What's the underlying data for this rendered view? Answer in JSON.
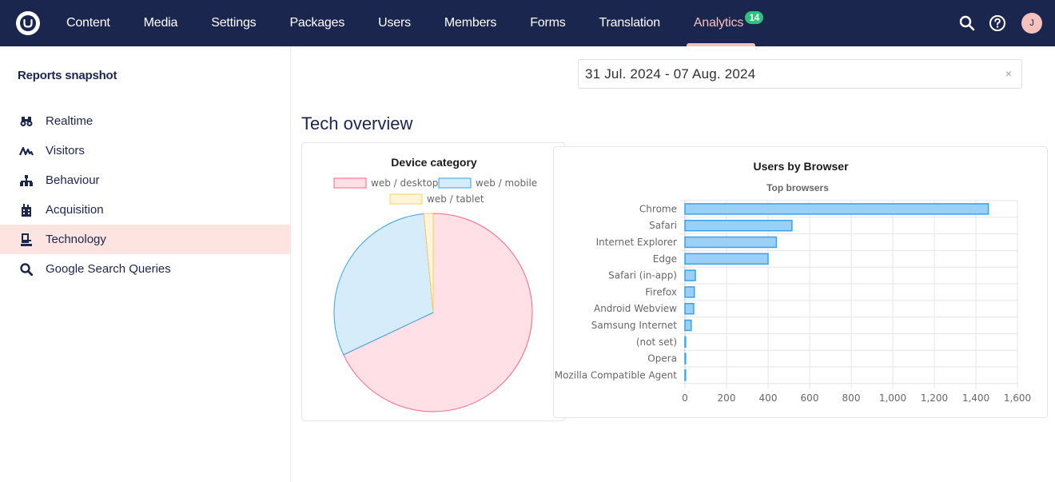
{
  "nav": {
    "items": [
      {
        "label": "Content"
      },
      {
        "label": "Media"
      },
      {
        "label": "Settings"
      },
      {
        "label": "Packages"
      },
      {
        "label": "Users"
      },
      {
        "label": "Members"
      },
      {
        "label": "Forms"
      },
      {
        "label": "Translation"
      },
      {
        "label": "Analytics"
      }
    ],
    "analytics_badge": "14",
    "avatar_initial": "J",
    "colors": {
      "bar": "#1b264f",
      "active": "#f5c1bc",
      "badge": "#2bc37c"
    }
  },
  "sidebar": {
    "title": "Reports snapshot",
    "items": [
      {
        "label": "Realtime",
        "icon": "binoculars-icon"
      },
      {
        "label": "Visitors",
        "icon": "pulse-icon"
      },
      {
        "label": "Behaviour",
        "icon": "sitemap-icon"
      },
      {
        "label": "Acquisition",
        "icon": "building-icon"
      },
      {
        "label": "Technology",
        "icon": "computer-icon"
      },
      {
        "label": "Google Search Queries",
        "icon": "search-icon"
      }
    ],
    "active_item": "Technology"
  },
  "date_range": {
    "value": "31 Jul. 2024 - 07 Aug. 2024",
    "clear_symbol": "×"
  },
  "page_title": "Tech overview",
  "chart_data": [
    {
      "type": "pie",
      "title": "Device category",
      "legend_position": "top",
      "series": [
        {
          "name": "web / desktop",
          "value": 68,
          "color": "#ff6384",
          "fill": "#ffe0e6"
        },
        {
          "name": "web / mobile",
          "value": 30.5,
          "color": "#36a2eb",
          "fill": "#d7ecfb"
        },
        {
          "name": "web / tablet",
          "value": 1.5,
          "color": "#ffce56",
          "fill": "#fff5dd"
        }
      ]
    },
    {
      "type": "bar",
      "orientation": "horizontal",
      "title": "Users by Browser",
      "subtitle": "Top browsers",
      "categories": [
        "Chrome",
        "Safari",
        "Internet Explorer",
        "Edge",
        "Safari (in-app)",
        "Firefox",
        "Android Webview",
        "Samsung Internet",
        "(not set)",
        "Opera",
        "Mozilla Compatible Agent"
      ],
      "values": [
        1460,
        515,
        440,
        400,
        50,
        45,
        42,
        30,
        3,
        2,
        1
      ],
      "xlim": [
        0,
        1600
      ],
      "xticks": [
        "0",
        "200",
        "400",
        "600",
        "800",
        "1,000",
        "1,200",
        "1,400",
        "1,600"
      ],
      "grid": true,
      "bar_color": "#36a2eb",
      "bar_fill": "#9ad0f5"
    }
  ]
}
